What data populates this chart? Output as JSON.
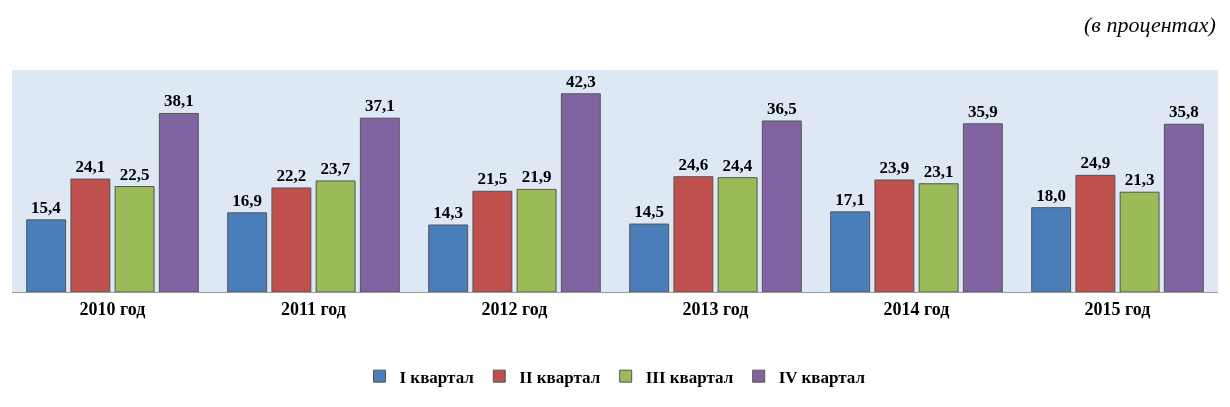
{
  "chart_data": {
    "type": "bar",
    "annotations": [
      "(в процентах)"
    ],
    "categories": [
      "2010 год",
      "2011 год",
      "2012 год",
      "2013 год",
      "2014 год",
      "2015 год"
    ],
    "series": [
      {
        "name": "I квартал",
        "color": "#4a7ebb",
        "values": [
          15.4,
          16.9,
          14.3,
          14.5,
          17.1,
          18.0
        ],
        "value_labels": [
          "15,4",
          "16,9",
          "14,3",
          "14,5",
          "17,1",
          "18,0"
        ]
      },
      {
        "name": "II квартал",
        "color": "#c0504d",
        "values": [
          24.1,
          22.2,
          21.5,
          24.6,
          23.9,
          24.9
        ],
        "value_labels": [
          "24,1",
          "22,2",
          "21,5",
          "24,6",
          "23,9",
          "24,9"
        ]
      },
      {
        "name": "III квартал",
        "color": "#9bbb59",
        "values": [
          22.5,
          23.7,
          21.9,
          24.4,
          23.1,
          21.3
        ],
        "value_labels": [
          "22,5",
          "23,7",
          "21,9",
          "24,4",
          "23,1",
          "21,3"
        ]
      },
      {
        "name": "IV квартал",
        "color": "#8064a2",
        "values": [
          38.1,
          37.1,
          42.3,
          36.5,
          35.9,
          35.8
        ],
        "value_labels": [
          "38,1",
          "37,1",
          "42,3",
          "36,5",
          "35,9",
          "35,8"
        ]
      }
    ],
    "legend": "bottom",
    "grid": false
  }
}
